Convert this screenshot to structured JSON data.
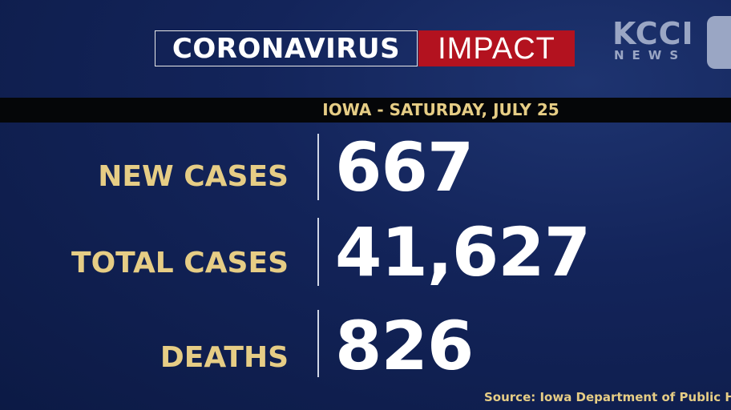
{
  "header": {
    "title_left": "CORONAVIRUS",
    "title_right": "IMPACT",
    "logo_main": "KCCI",
    "logo_sub": "NEWS"
  },
  "subheader": "IOWA -  SATURDAY, JULY 25",
  "stats": [
    {
      "label": "NEW CASES",
      "value": "667"
    },
    {
      "label": "TOTAL CASES",
      "value": "41,627"
    },
    {
      "label": "DEATHS",
      "value": "826"
    }
  ],
  "source": "Source: Iowa Department of Public Hea"
}
